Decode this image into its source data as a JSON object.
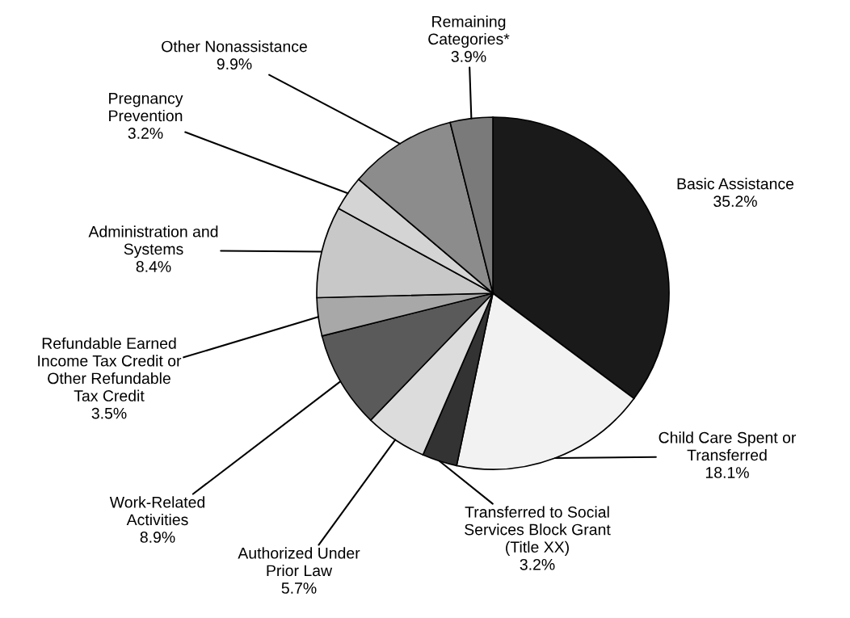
{
  "chart_data": {
    "type": "pie",
    "categories": [
      "Basic Assistance",
      "Child Care Spent or\nTransferred",
      "Transferred to Social\nServices Block Grant\n(Title XX)",
      "Authorized Under\nPrior Law",
      "Work-Related\nActivities",
      "Refundable Earned\nIncome Tax Credit or\nOther Refundable\nTax Credit",
      "Administration and\nSystems",
      "Pregnancy\nPrevention",
      "Other Nonassistance",
      "Remaining\nCategories*"
    ],
    "values": [
      35.2,
      18.1,
      3.2,
      5.7,
      8.9,
      3.5,
      8.4,
      3.2,
      9.9,
      3.9
    ],
    "colors": [
      "#1a1a1a",
      "#f2f2f2",
      "#333333",
      "#dcdcdc",
      "#5a5a5a",
      "#a8a8a8",
      "#c8c8c8",
      "#d4d4d4",
      "#8c8c8c",
      "#7a7a7a"
    ],
    "value_labels": [
      "35.2%",
      "18.1%",
      "3.2%",
      "5.7%",
      "8.9%",
      "3.5%",
      "8.4%",
      "3.2%",
      "9.9%",
      "3.9%"
    ],
    "legend": false
  }
}
